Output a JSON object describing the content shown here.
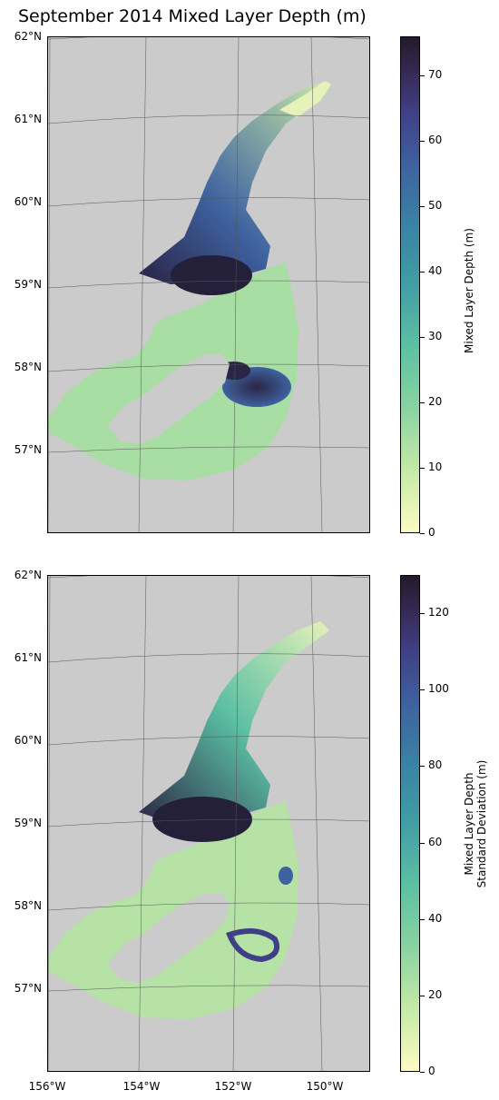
{
  "title": "September 2014 Mixed Layer Depth (m)",
  "latitude_labels": [
    "62°N",
    "61°N",
    "60°N",
    "59°N",
    "58°N",
    "57°N"
  ],
  "longitude_labels": [
    "156°W",
    "154°W",
    "152°W",
    "150°W"
  ],
  "top_panel": {
    "colorbar_label": "Mixed Layer Depth (m)",
    "colorbar_ticks": [
      "0",
      "10",
      "20",
      "30",
      "40",
      "50",
      "60",
      "70"
    ],
    "colorbar_range": [
      0,
      76
    ]
  },
  "bottom_panel": {
    "colorbar_label_line1": "Mixed Layer Depth",
    "colorbar_label_line2": "Standard Deviation (m)",
    "colorbar_ticks": [
      "0",
      "20",
      "40",
      "60",
      "80",
      "100",
      "120"
    ],
    "colorbar_range": [
      0,
      130
    ]
  },
  "colors": {
    "land": "#cbcbcb",
    "colormap": "deep",
    "colormap_low": "#fdfbc4",
    "colormap_high": "#231a2a"
  }
}
